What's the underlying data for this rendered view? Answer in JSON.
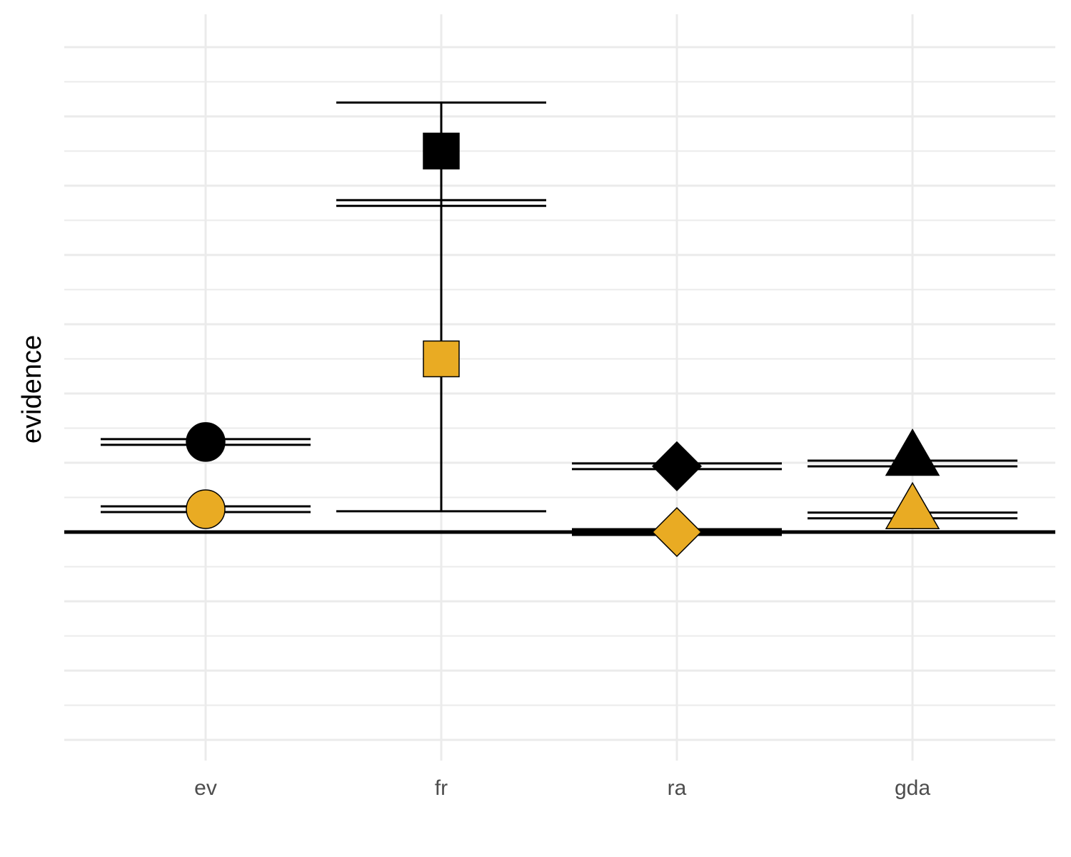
{
  "chart_data": {
    "type": "scatter",
    "ylabel": "evidence",
    "categories": [
      "ev",
      "fr",
      "ra",
      "gda"
    ],
    "ylim": [
      -3.2,
      7.0
    ],
    "y_ticks_labeled": false,
    "grid": true,
    "reference_line_y": 0,
    "series": [
      {
        "color": "#000000",
        "markers": [
          "circle",
          "square",
          "diamond",
          "triangle"
        ],
        "points": [
          {
            "category": "ev",
            "y": 1.3
          },
          {
            "category": "fr",
            "y": 5.5
          },
          {
            "category": "ra",
            "y": 0.95
          },
          {
            "category": "gda",
            "y": 1.07
          }
        ]
      },
      {
        "color": "#E9AB23",
        "markers": [
          "circle",
          "square",
          "diamond",
          "triangle"
        ],
        "points": [
          {
            "category": "ev",
            "y": 0.33
          },
          {
            "category": "fr",
            "y": 2.5
          },
          {
            "category": "ra",
            "y": 0.0
          },
          {
            "category": "gda",
            "y": 0.3
          }
        ]
      }
    ],
    "double_lines": [
      {
        "category": "ev",
        "y": 1.3
      },
      {
        "category": "ev",
        "y": 0.33
      },
      {
        "category": "fr",
        "y": 4.75
      },
      {
        "category": "ra",
        "y": 0.95
      },
      {
        "category": "ra",
        "y": 0.0
      },
      {
        "category": "gda",
        "y": 0.99
      },
      {
        "category": "gda",
        "y": 0.24
      }
    ],
    "error_bars": [
      {
        "category": "fr",
        "low": 0.3,
        "high": 6.2
      }
    ]
  }
}
